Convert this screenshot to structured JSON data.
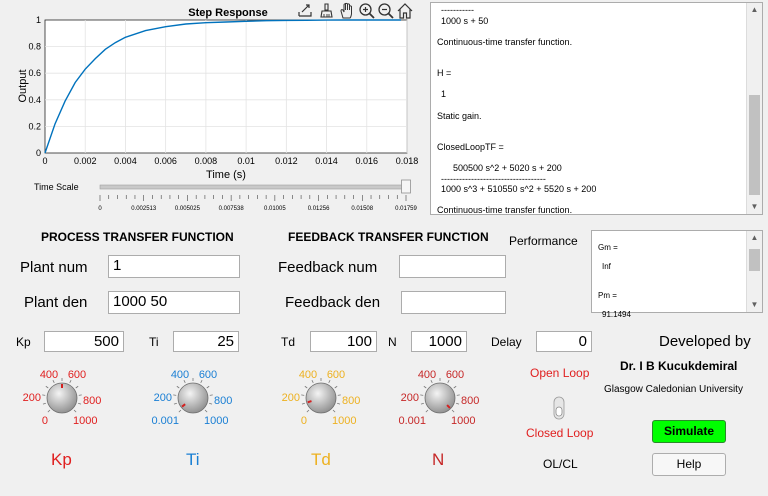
{
  "plot": {
    "title": "Step Response",
    "xlabel": "Time (s)",
    "ylabel": "Output",
    "x_ticks": [
      "0",
      "0.002",
      "0.004",
      "0.006",
      "0.008",
      "0.01",
      "0.012",
      "0.014",
      "0.016",
      "0.018"
    ],
    "y_ticks": [
      "0",
      "0.2",
      "0.4",
      "0.6",
      "0.8",
      "1"
    ]
  },
  "chart_data": {
    "type": "line",
    "title": "Step Response",
    "xlabel": "Time (s)",
    "ylabel": "Output",
    "xlim": [
      0,
      0.018
    ],
    "ylim": [
      0,
      1
    ],
    "grid": true,
    "series": [
      {
        "x": [
          0,
          0.0005,
          0.001,
          0.0015,
          0.002,
          0.0025,
          0.003,
          0.0035,
          0.004,
          0.005,
          0.006,
          0.007,
          0.008,
          0.009,
          0.01,
          0.011,
          0.012,
          0.013,
          0.014,
          0.015,
          0.016,
          0.0177
        ],
        "y": [
          0,
          0.22,
          0.39,
          0.53,
          0.63,
          0.71,
          0.78,
          0.83,
          0.87,
          0.92,
          0.95,
          0.97,
          0.98,
          0.985,
          0.99,
          0.995,
          0.997,
          0.998,
          0.999,
          1.0,
          1.0,
          1.0
        ]
      }
    ],
    "color": "#0072bd"
  },
  "toolbar": {
    "icons": [
      "export-icon",
      "brush-icon",
      "pan-icon",
      "zoom-in-icon",
      "zoom-out-icon",
      "home-icon"
    ]
  },
  "time_scale": {
    "label": "Time Scale",
    "ticks": [
      "0",
      "0.002513",
      "0.005025",
      "0.007538",
      "0.01005",
      "0.01256",
      "0.01508",
      "0.01759"
    ],
    "value": 1.0
  },
  "output_panel": {
    "lines": [
      "-----------",
      "1000 s + 50",
      "",
      "Continuous-time transfer function.",
      "",
      "",
      "H =",
      "",
      "1",
      "",
      "Static gain.",
      "",
      "",
      "ClosedLoopTF =",
      "",
      "500500 s^2 + 5020 s + 200",
      "-----------------------------------",
      "1000 s^3 + 510550 s^2 + 5520 s + 200",
      "",
      "Continuous-time transfer function."
    ]
  },
  "performance": {
    "label": "Performance",
    "lines": [
      "Gm =",
      "",
      "Inf",
      "",
      "",
      "Pm =",
      "",
      "91.1494"
    ]
  },
  "process": {
    "title": "PROCESS TRANSFER FUNCTION",
    "num_label": "Plant num",
    "num_value": "1",
    "den_label": "Plant den",
    "den_value": "1000 50"
  },
  "feedback": {
    "title": "FEEDBACK  TRANSFER FUNCTION",
    "num_label": "Feedback num",
    "num_value": "",
    "den_label": "Feedback den",
    "den_value": ""
  },
  "params": {
    "kp_label": "Kp",
    "kp_value": "500",
    "ti_label": "Ti",
    "ti_value": "25",
    "td_label": "Td",
    "td_value": "100",
    "n_label": "N",
    "n_value": "1000",
    "delay_label": "Delay",
    "delay_value": "0"
  },
  "knobs": {
    "kp": {
      "name": "Kp",
      "color": "#e02020",
      "l400": "400",
      "l600": "600",
      "l200": "200",
      "l800": "800",
      "l0": "0",
      "l1000": "1000",
      "value": 500
    },
    "ti": {
      "name": "Ti",
      "color": "#1a7fd4",
      "l400": "400",
      "l600": "600",
      "l200": "200",
      "l800": "800",
      "l0": "0.001",
      "l1000": "1000",
      "value": 25
    },
    "td": {
      "name": "Td",
      "color": "#edb120",
      "l400": "400",
      "l600": "600",
      "l200": "200",
      "l800": "800",
      "l0": "0",
      "l1000": "1000",
      "value": 100
    },
    "n": {
      "name": "N",
      "color": "#c62828",
      "l400": "400",
      "l600": "600",
      "l200": "200",
      "l800": "800",
      "l0": "0.001",
      "l1000": "1000",
      "value": 1000
    }
  },
  "loop": {
    "open": "Open Loop",
    "closed": "Closed Loop",
    "label": "OL/CL",
    "color": "#e02020"
  },
  "credits": {
    "developed": "Developed by",
    "name": "Dr. I B Kucukdemiral",
    "org": "Glasgow Caledonian University"
  },
  "buttons": {
    "simulate": "Simulate",
    "help": "Help",
    "simulate_color": "#00ff00"
  }
}
